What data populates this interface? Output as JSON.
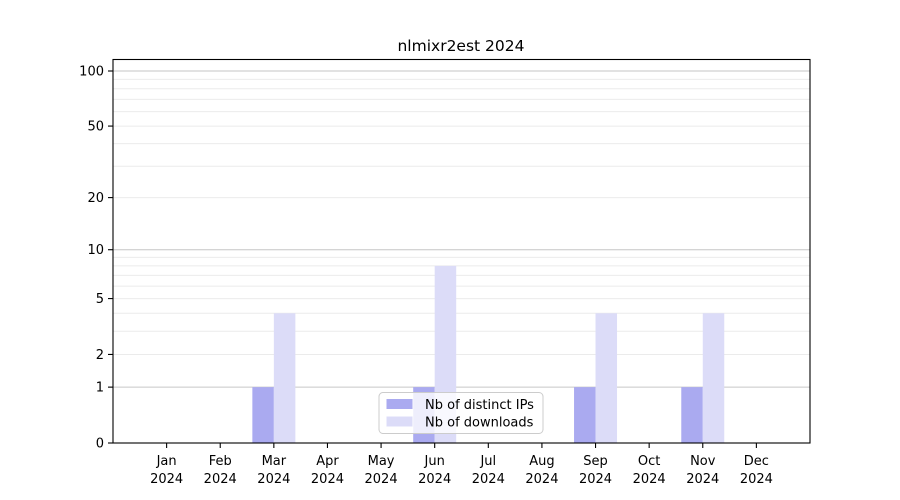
{
  "chart_data": {
    "type": "bar",
    "title": "nlmixr2est 2024",
    "months": [
      "Jan",
      "Feb",
      "Mar",
      "Apr",
      "May",
      "Jun",
      "Jul",
      "Aug",
      "Sep",
      "Oct",
      "Nov",
      "Dec"
    ],
    "year": "2024",
    "series": [
      {
        "name": "Nb of distinct IPs",
        "color": "#aaaaf0",
        "values": [
          0,
          0,
          1,
          0,
          0,
          1,
          0,
          0,
          1,
          0,
          1,
          0
        ]
      },
      {
        "name": "Nb of downloads",
        "color": "#dcdcf8",
        "values": [
          0,
          0,
          4,
          0,
          0,
          8,
          0,
          0,
          4,
          0,
          4,
          0
        ]
      }
    ],
    "yscale": "log10(1+x)",
    "ylim": [
      0,
      113
    ],
    "y_tick_values": [
      0,
      1,
      2,
      5,
      10,
      20,
      50,
      100
    ],
    "y_tick_labels": [
      "0",
      "1",
      "2",
      "5",
      "10",
      "20",
      "50",
      "100"
    ],
    "major_gridline_values": [
      1,
      10,
      100
    ],
    "minor_gridline_values": [
      2,
      3,
      4,
      5,
      6,
      7,
      8,
      9,
      20,
      30,
      40,
      50,
      60,
      70,
      80,
      90
    ],
    "grid_major_color": "#c6c6c6",
    "grid_minor_color": "#ebebeb",
    "axis_color": "#000000",
    "legend_position": "bottom-center-inside",
    "legend_border_color": "#cccccc",
    "legend_background": "#ffffff"
  }
}
